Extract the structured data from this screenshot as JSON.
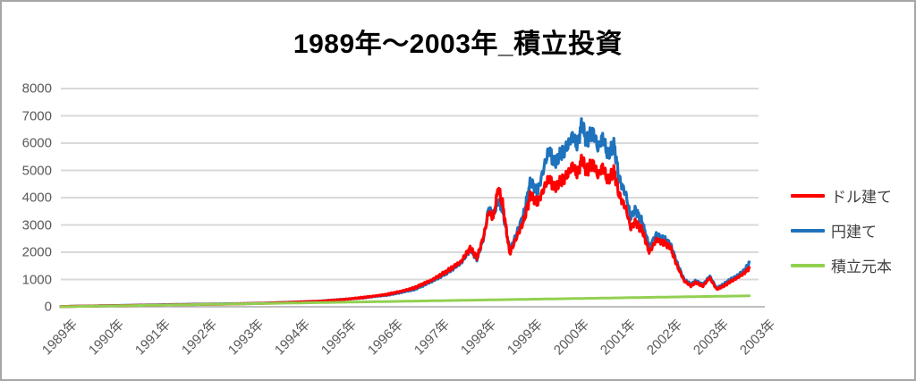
{
  "title": "1989年〜2003年_積立投資",
  "colors": {
    "dollar_red": "#ff0000",
    "yen_blue": "#1f72bc",
    "principal_green": "#92d050",
    "gridline": "#d9d9d9",
    "axis_line": "#bfbfbf",
    "tick_text": "#595959",
    "legend_text": "#404040",
    "frame_border": "#a6a6a6",
    "title_text": "#000000"
  },
  "chart_data": {
    "type": "line",
    "title": "1989年〜2003年_積立投資",
    "xlabel": "",
    "ylabel": "",
    "grid": true,
    "legend_position": "right",
    "y_axis": {
      "min": 0,
      "max": 8000,
      "step": 1000
    },
    "x_axis": {
      "tick_labels": [
        "1989年",
        "1990年",
        "1991年",
        "1992年",
        "1993年",
        "1994年",
        "1995年",
        "1996年",
        "1997年",
        "1998年",
        "1999年",
        "2000年",
        "2001年",
        "2002年",
        "2003年",
        "2003年"
      ],
      "start_year": 1989,
      "years_span": 15
    },
    "x": [
      1989.0,
      1989.5,
      1990.0,
      1990.5,
      1991.0,
      1991.5,
      1992.0,
      1992.5,
      1993.0,
      1993.5,
      1994.0,
      1994.5,
      1995.0,
      1995.5,
      1996.0,
      1996.3,
      1996.6,
      1997.0,
      1997.3,
      1997.6,
      1997.8,
      1997.95,
      1998.1,
      1998.2,
      1998.3,
      1998.4,
      1998.5,
      1998.65,
      1998.8,
      1998.95,
      1999.1,
      1999.25,
      1999.4,
      1999.5,
      1999.6,
      1999.75,
      1999.9,
      2000.0,
      2000.1,
      2000.2,
      2000.3,
      2000.45,
      2000.55,
      2000.65,
      2000.75,
      2000.9,
      2001.0,
      2001.15,
      2001.25,
      2001.35,
      2001.5,
      2001.65,
      2001.8,
      2001.95,
      2002.1,
      2002.25,
      2002.4,
      2002.55,
      2002.65,
      2002.8,
      2002.95,
      2003.1,
      2003.25,
      2003.4,
      2003.55,
      2003.7,
      2003.8
    ],
    "series": [
      {
        "name": "ドル建て",
        "color": "#ff0000",
        "z": 2,
        "width": 3.2,
        "noise_frac": 0.05,
        "values": [
          10,
          22,
          35,
          48,
          60,
          75,
          85,
          95,
          115,
          135,
          165,
          195,
          255,
          340,
          450,
          560,
          690,
          1000,
          1300,
          1650,
          2150,
          1800,
          2650,
          3500,
          3250,
          4350,
          3750,
          1950,
          2550,
          3150,
          4100,
          3800,
          4400,
          4750,
          4350,
          4600,
          4850,
          5200,
          4850,
          5400,
          5000,
          5250,
          4800,
          5150,
          4650,
          4950,
          4100,
          3600,
          2900,
          3100,
          2800,
          2000,
          2450,
          2350,
          2200,
          1500,
          950,
          760,
          900,
          750,
          1060,
          640,
          760,
          930,
          1070,
          1250,
          1410
        ]
      },
      {
        "name": "円建て",
        "color": "#1f72bc",
        "z": 1,
        "width": 3.2,
        "noise_frac": 0.05,
        "values": [
          10,
          25,
          40,
          55,
          70,
          85,
          95,
          105,
          120,
          140,
          170,
          200,
          260,
          330,
          430,
          520,
          640,
          950,
          1250,
          1600,
          2100,
          1750,
          2600,
          3650,
          3350,
          3900,
          3550,
          2050,
          2700,
          3400,
          4600,
          4200,
          5200,
          5800,
          5250,
          5600,
          5900,
          6300,
          5900,
          6700,
          6100,
          6400,
          5800,
          6250,
          5600,
          5900,
          4700,
          4100,
          3300,
          3550,
          3100,
          2200,
          2650,
          2500,
          2300,
          1600,
          1000,
          820,
          950,
          800,
          1120,
          680,
          820,
          1000,
          1150,
          1350,
          1610
        ]
      },
      {
        "name": "積立元本",
        "color": "#92d050",
        "z": 3,
        "width": 3,
        "noise_frac": 0,
        "x": [
          1989.0,
          1990.0,
          1991.0,
          1992.0,
          1993.0,
          1994.0,
          1995.0,
          1996.0,
          1997.0,
          1998.0,
          1999.0,
          2000.0,
          2001.0,
          2002.0,
          2003.0,
          2003.8
        ],
        "values": [
          5,
          30,
          57,
          84,
          111,
          138,
          165,
          192,
          219,
          246,
          273,
          300,
          327,
          354,
          381,
          400
        ]
      }
    ],
    "render_noise": {
      "freqs": [
        97.13,
        233.7,
        541.2
      ],
      "weights": [
        0.5,
        0.35,
        0.25
      ]
    }
  },
  "legend": {
    "entries": [
      "ドル建て",
      "円建て",
      "積立元本"
    ]
  }
}
